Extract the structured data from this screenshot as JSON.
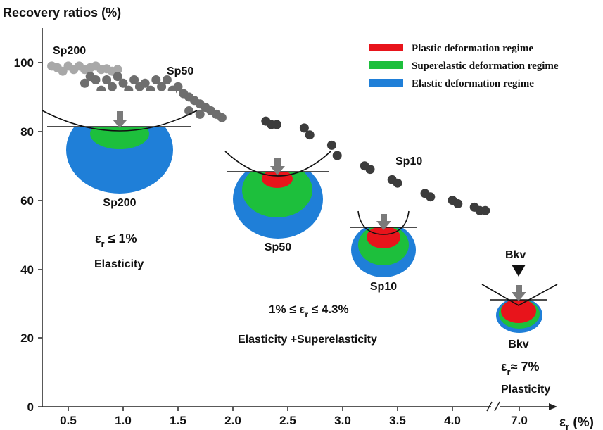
{
  "chart_data": {
    "type": "scatter",
    "ylabel": "Recovery ratios (%)",
    "xlabel_symbol": "ε",
    "xlabel_sub": "r",
    "xlabel_unit": " (%)",
    "x_ticks": [
      "0.5",
      "1.0",
      "1.5",
      "2.0",
      "2.5",
      "3.0",
      "3.5",
      "4.0",
      "7.0"
    ],
    "y_ticks": [
      "0",
      "20",
      "40",
      "60",
      "80",
      "100"
    ],
    "ylim": [
      0,
      110
    ],
    "x_break": "between 4.3 and 7.0",
    "legend": [
      {
        "label": "Plastic deformation regime",
        "color": "#e8141b"
      },
      {
        "label": "Superelastic deformation regime",
        "color": "#1dbf3c"
      },
      {
        "label": "Elastic deformation regime",
        "color": "#1f7fd8"
      }
    ],
    "series": [
      {
        "name": "Sp200",
        "color": "#a8a8a8",
        "points": [
          [
            0.35,
            99
          ],
          [
            0.4,
            98.5
          ],
          [
            0.45,
            97.5
          ],
          [
            0.5,
            99
          ],
          [
            0.55,
            98
          ],
          [
            0.6,
            99
          ],
          [
            0.65,
            98
          ],
          [
            0.7,
            98.5
          ],
          [
            0.75,
            99
          ],
          [
            0.8,
            98
          ],
          [
            0.85,
            98.2
          ],
          [
            0.9,
            97.5
          ],
          [
            0.95,
            98
          ]
        ]
      },
      {
        "name": "Sp50",
        "color": "#6e6e6e",
        "points": [
          [
            0.65,
            94
          ],
          [
            0.7,
            96
          ],
          [
            0.75,
            95
          ],
          [
            0.8,
            92
          ],
          [
            0.85,
            95
          ],
          [
            0.9,
            93
          ],
          [
            0.95,
            96
          ],
          [
            1.0,
            94
          ],
          [
            1.05,
            92
          ],
          [
            1.1,
            95
          ],
          [
            1.15,
            93
          ],
          [
            1.2,
            94
          ],
          [
            1.25,
            92
          ],
          [
            1.3,
            95
          ],
          [
            1.35,
            93
          ],
          [
            1.4,
            95
          ],
          [
            1.45,
            92
          ],
          [
            1.5,
            93
          ],
          [
            1.55,
            91
          ],
          [
            1.6,
            90
          ],
          [
            1.65,
            89
          ],
          [
            1.7,
            88
          ],
          [
            1.75,
            87
          ],
          [
            1.8,
            86
          ],
          [
            1.85,
            85
          ],
          [
            1.9,
            84
          ],
          [
            1.6,
            86
          ],
          [
            1.7,
            85
          ]
        ]
      },
      {
        "name": "Sp10",
        "color": "#3c3c3c",
        "points": [
          [
            2.3,
            83
          ],
          [
            2.35,
            82
          ],
          [
            2.4,
            82
          ],
          [
            2.65,
            81
          ],
          [
            2.7,
            79
          ],
          [
            2.9,
            76
          ],
          [
            2.95,
            73
          ],
          [
            3.2,
            70
          ],
          [
            3.25,
            69
          ],
          [
            3.45,
            66
          ],
          [
            3.5,
            65
          ],
          [
            3.75,
            62
          ],
          [
            3.8,
            61
          ],
          [
            4.0,
            60
          ],
          [
            4.05,
            59
          ],
          [
            4.2,
            58
          ],
          [
            4.25,
            57
          ],
          [
            4.3,
            57
          ]
        ]
      }
    ],
    "annotations": {
      "sp200_top": "Sp200",
      "sp50_top": "Sp50",
      "sp10_top": "Sp10",
      "bkv_top": "Bkv",
      "sp200_bottom": "Sp200",
      "sp50_bottom": "Sp50",
      "sp10_bottom": "Sp10",
      "bkv_bottom": "Bkv",
      "elasticity_cond_symbol": "ε",
      "elasticity_cond_sub": "r",
      "elasticity_cond_rest": " ≤ 1%",
      "elasticity": "Elasticity",
      "superel_cond_pre": "1% ≤ ε",
      "superel_cond_sub": "r",
      "superel_cond_rest": " ≤ 4.3%",
      "superel": "Elasticity +Superelasticity",
      "plastic_cond_symbol": "ε",
      "plastic_cond_sub": "r",
      "plastic_cond_rest": "≈ 7%",
      "plasticity": "Plasticity"
    }
  }
}
